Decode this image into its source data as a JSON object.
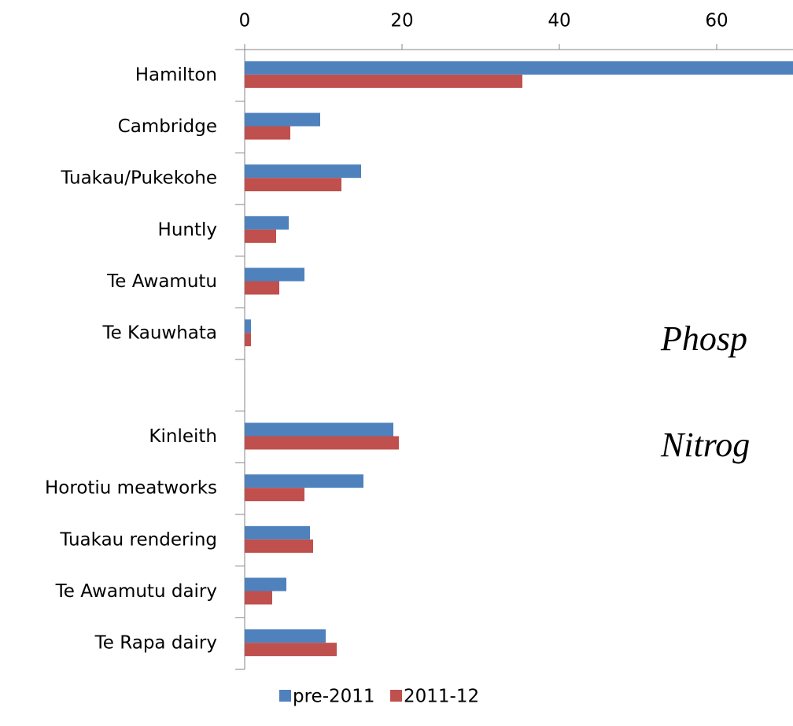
{
  "chart_data": {
    "type": "hbar",
    "categories": [
      "Hamilton",
      "Cambridge",
      "Tuakau/Pukekohe",
      "Huntly",
      "Te Awamutu",
      "Te Kauwhata",
      null,
      "Kinleith",
      "Horotiu meatworks",
      "Tuakau rendering",
      "Te Awamutu dairy",
      "Te Rapa dairy"
    ],
    "series": [
      {
        "name": "pre-2011",
        "color": "#4f81bd",
        "values": [
          75,
          9.6,
          14.8,
          5.6,
          7.6,
          0.8,
          null,
          18.9,
          15.1,
          8.3,
          5.3,
          10.3
        ]
      },
      {
        "name": "2011-12",
        "color": "#c0504d",
        "values": [
          35.3,
          5.8,
          12.3,
          4.0,
          4.4,
          0.8,
          null,
          19.6,
          7.6,
          8.7,
          3.5,
          11.7
        ]
      }
    ],
    "xlim": [
      0,
      69.7
    ],
    "xticks": [
      0,
      20,
      40,
      60
    ],
    "grid": false,
    "legend": "bottom",
    "annotations": [
      "Phosp",
      "Nitrog"
    ]
  }
}
